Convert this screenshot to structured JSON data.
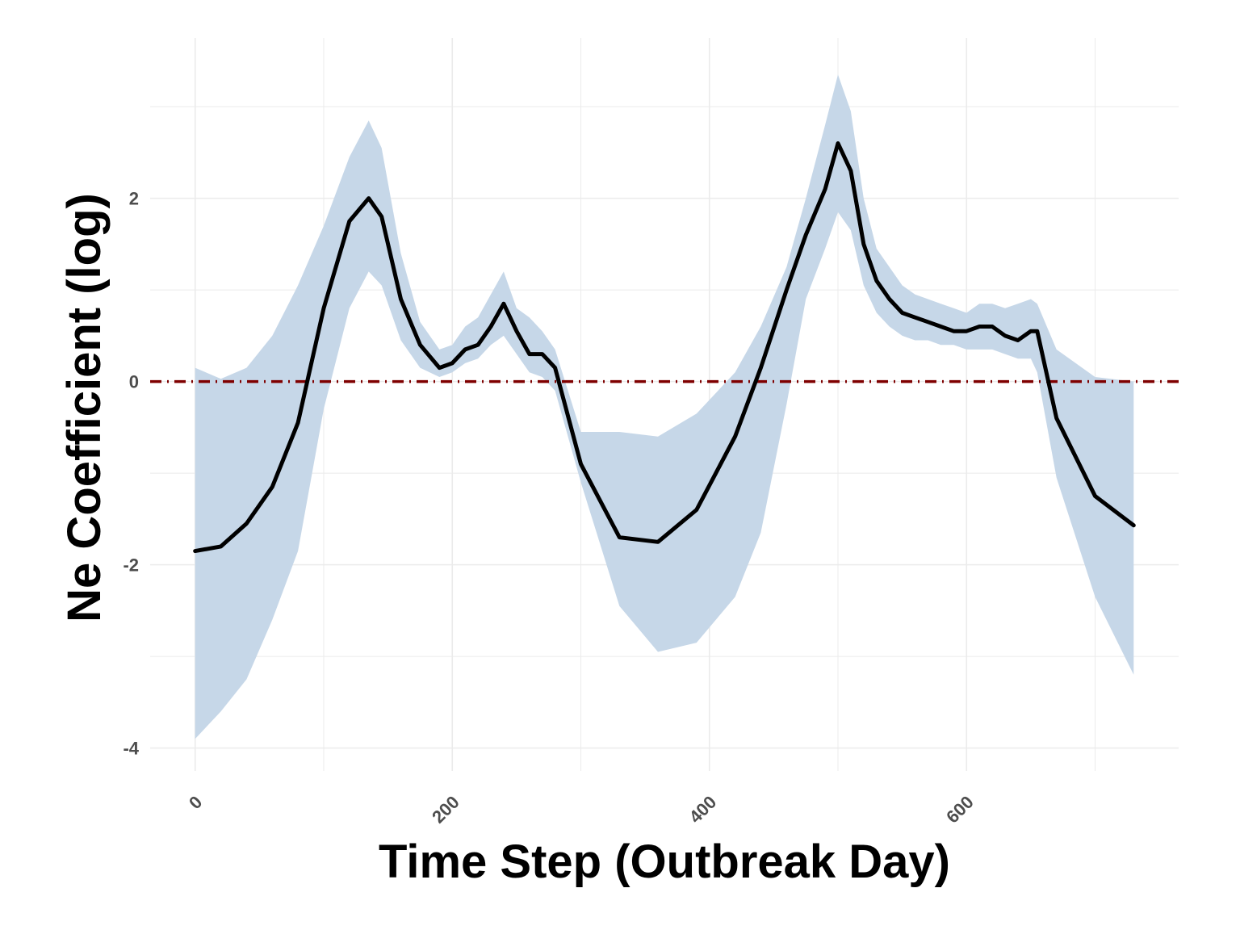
{
  "chart_data": {
    "type": "line",
    "title": "",
    "xlabel": "Time Step (Outbreak Day)",
    "ylabel": "Ne Coefficient (log)",
    "xlim": [
      -35,
      765
    ],
    "ylim": [
      -4.25,
      3.75
    ],
    "x_ticks": [
      0,
      200,
      400,
      600
    ],
    "x_tick_labels": [
      "0",
      "200",
      "400",
      "600"
    ],
    "y_ticks": [
      -4,
      -2,
      0,
      2
    ],
    "y_tick_labels": [
      "-4",
      "-2",
      "0",
      "2"
    ],
    "grid": true,
    "legend": "none",
    "reference_line": {
      "y": 0,
      "style": "dot-dash",
      "color": "#7f0000"
    },
    "colors": {
      "line": "#000000",
      "band": "#c6d7e8",
      "grid": "#ebebeb"
    },
    "series": [
      {
        "type": "line",
        "x": [
          0,
          20,
          40,
          60,
          80,
          100,
          120,
          135,
          145,
          160,
          175,
          190,
          200,
          210,
          220,
          230,
          240,
          250,
          260,
          270,
          280,
          300,
          330,
          360,
          390,
          420,
          440,
          460,
          475,
          490,
          500,
          510,
          520,
          530,
          540,
          550,
          560,
          570,
          580,
          590,
          600,
          610,
          620,
          630,
          640,
          650,
          655,
          670,
          700,
          730
        ],
        "y": [
          -1.85,
          -1.8,
          -1.55,
          -1.15,
          -0.45,
          0.8,
          1.75,
          2.0,
          1.8,
          0.9,
          0.4,
          0.15,
          0.2,
          0.35,
          0.4,
          0.6,
          0.85,
          0.55,
          0.3,
          0.3,
          0.15,
          -0.9,
          -1.7,
          -1.75,
          -1.4,
          -0.6,
          0.15,
          1.0,
          1.6,
          2.1,
          2.6,
          2.3,
          1.5,
          1.1,
          0.9,
          0.75,
          0.7,
          0.65,
          0.6,
          0.55,
          0.55,
          0.6,
          0.6,
          0.5,
          0.45,
          0.55,
          0.55,
          -0.4,
          -1.25,
          -1.57
        ]
      },
      {
        "type": "band",
        "x": [
          0,
          20,
          40,
          60,
          80,
          100,
          120,
          135,
          145,
          160,
          175,
          190,
          200,
          210,
          220,
          230,
          240,
          250,
          260,
          270,
          280,
          300,
          330,
          360,
          390,
          420,
          440,
          460,
          475,
          490,
          500,
          510,
          520,
          530,
          540,
          550,
          560,
          570,
          580,
          590,
          600,
          610,
          620,
          630,
          640,
          650,
          655,
          670,
          700,
          730
        ],
        "lower": [
          -3.9,
          -3.6,
          -3.25,
          -2.6,
          -1.85,
          -0.3,
          0.8,
          1.2,
          1.05,
          0.45,
          0.15,
          0.05,
          0.1,
          0.2,
          0.25,
          0.4,
          0.5,
          0.3,
          0.1,
          0.05,
          -0.1,
          -1.1,
          -2.45,
          -2.95,
          -2.85,
          -2.35,
          -1.65,
          -0.25,
          0.9,
          1.45,
          1.85,
          1.65,
          1.05,
          0.75,
          0.6,
          0.5,
          0.45,
          0.45,
          0.4,
          0.4,
          0.35,
          0.35,
          0.35,
          0.3,
          0.25,
          0.25,
          0.1,
          -1.05,
          -2.35,
          -3.2
        ],
        "upper": [
          0.15,
          0.03,
          0.15,
          0.5,
          1.05,
          1.7,
          2.45,
          2.85,
          2.55,
          1.4,
          0.65,
          0.35,
          0.4,
          0.6,
          0.7,
          0.95,
          1.2,
          0.8,
          0.7,
          0.55,
          0.35,
          -0.55,
          -0.55,
          -0.6,
          -0.35,
          0.1,
          0.6,
          1.25,
          2.0,
          2.8,
          3.35,
          2.95,
          2.0,
          1.45,
          1.25,
          1.05,
          0.95,
          0.9,
          0.85,
          0.8,
          0.75,
          0.85,
          0.85,
          0.8,
          0.85,
          0.9,
          0.85,
          0.35,
          0.05,
          0.0
        ]
      }
    ]
  }
}
